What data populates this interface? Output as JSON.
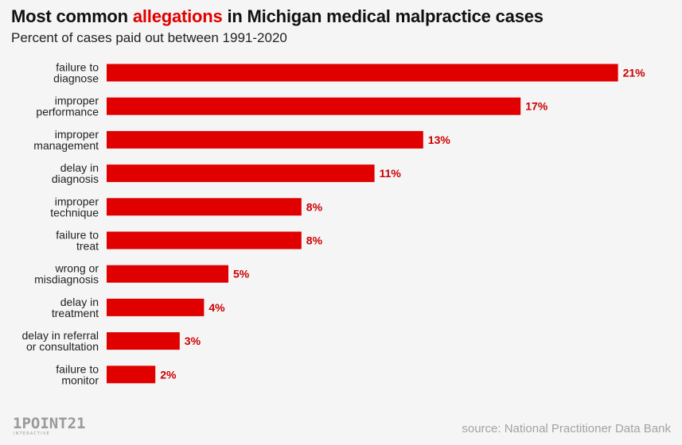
{
  "header": {
    "title_before": "Most common ",
    "title_highlight": "allegations",
    "title_after": " in Michigan medical malpractice cases",
    "subtitle": "Percent of cases paid out between 1991-2020"
  },
  "footer": {
    "logo_text": "1POINT21",
    "logo_subtext": "INTERACTIVE",
    "source": "source: National Practitioner Data Bank"
  },
  "colors": {
    "bar": "#e00000",
    "value_label": "#cc0000",
    "highlight": "#e00000"
  },
  "chart_data": {
    "type": "bar",
    "orientation": "horizontal",
    "categories": [
      [
        "failure to",
        "diagnose"
      ],
      [
        "improper",
        "performance"
      ],
      [
        "improper",
        "management"
      ],
      [
        "delay in",
        "diagnosis"
      ],
      [
        "improper",
        "technique"
      ],
      [
        "failure to",
        "treat"
      ],
      [
        "wrong or",
        "misdiagnosis"
      ],
      [
        "delay in",
        "treatment"
      ],
      [
        "delay in referral",
        "or consultation"
      ],
      [
        "failure to",
        "monitor"
      ]
    ],
    "values": [
      21,
      17,
      13,
      11,
      8,
      8,
      5,
      4,
      3,
      2
    ],
    "value_labels": [
      "21%",
      "17%",
      "13%",
      "11%",
      "8%",
      "8%",
      "5%",
      "4%",
      "3%",
      "2%"
    ],
    "title": "Most common allegations in Michigan medical malpractice cases",
    "subtitle": "Percent of cases paid out between 1991-2020",
    "xlabel": "",
    "ylabel": "",
    "unit": "%",
    "grid": false,
    "legend": "none"
  }
}
